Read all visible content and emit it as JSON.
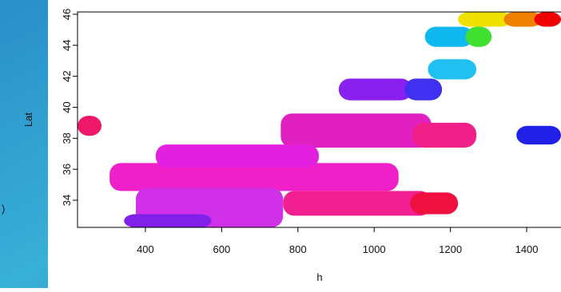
{
  "chart_data": {
    "type": "image",
    "x_label": "h",
    "y_label": "Lat",
    "fragment": ")",
    "xlim": [
      222,
      1490
    ],
    "ylim": [
      32.25,
      46.15
    ],
    "xticks": [
      400,
      600,
      800,
      1000,
      1200,
      1400
    ],
    "yticks": [
      34,
      36,
      38,
      40,
      42,
      44,
      46
    ],
    "regions": [
      {
        "x": [
          222,
          285
        ],
        "y": [
          38.16,
          39.45
        ],
        "color": "#f0186a"
      },
      {
        "x": [
          755,
          1150
        ],
        "y": [
          37.4,
          39.6
        ],
        "color": "#e020c0"
      },
      {
        "x": [
          1100,
          1268
        ],
        "y": [
          37.4,
          39.0
        ],
        "color": "#f02088"
      },
      {
        "x": [
          907,
          1100
        ],
        "y": [
          40.45,
          41.85
        ],
        "color": "#8a20f0"
      },
      {
        "x": [
          1080,
          1178
        ],
        "y": [
          40.45,
          41.85
        ],
        "color": "#4030f0"
      },
      {
        "x": [
          306,
          1064
        ],
        "y": [
          34.6,
          36.4
        ],
        "color": "#f020c8"
      },
      {
        "x": [
          427,
          855
        ],
        "y": [
          36.1,
          37.6
        ],
        "color": "#e420e0"
      },
      {
        "x": [
          375,
          761
        ],
        "y": [
          32.25,
          34.8
        ],
        "color": "#d030e8"
      },
      {
        "x": [
          344,
          573
        ],
        "y": [
          32.25,
          33.1
        ],
        "color": "#8020e8"
      },
      {
        "x": [
          761,
          1150
        ],
        "y": [
          33.0,
          34.6
        ],
        "color": "#f02090"
      },
      {
        "x": [
          1095,
          1220
        ],
        "y": [
          33.1,
          34.5
        ],
        "color": "#f01040"
      },
      {
        "x": [
          1133,
          1260
        ],
        "y": [
          43.9,
          45.2
        ],
        "color": "#10b8f0"
      },
      {
        "x": [
          1240,
          1308
        ],
        "y": [
          43.9,
          45.2
        ],
        "color": "#40e030"
      },
      {
        "x": [
          1141,
          1268
        ],
        "y": [
          41.8,
          43.1
        ],
        "color": "#20c0f0"
      },
      {
        "x": [
          1220,
          1360
        ],
        "y": [
          45.2,
          46.15
        ],
        "color": "#f0e000"
      },
      {
        "x": [
          1340,
          1440
        ],
        "y": [
          45.2,
          46.15
        ],
        "color": "#f08000"
      },
      {
        "x": [
          1420,
          1490
        ],
        "y": [
          45.2,
          46.15
        ],
        "color": "#f00000"
      },
      {
        "x": [
          1373,
          1490
        ],
        "y": [
          37.6,
          38.8
        ],
        "color": "#2020e8"
      }
    ]
  }
}
